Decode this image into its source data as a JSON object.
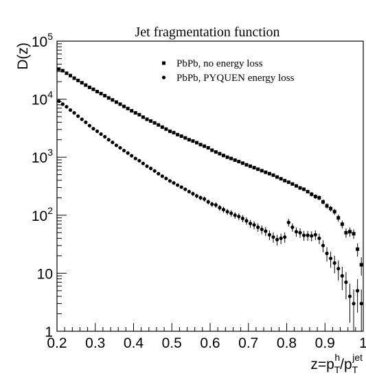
{
  "chart_data": {
    "type": "scatter",
    "title": "Jet fragmentation function",
    "ylabel": "D(z)",
    "xlabel_parts": {
      "base": "z=p",
      "sub1": "T",
      "sup1": "h",
      "slash": "/p",
      "sub2": "T",
      "sup2": "jet"
    },
    "xlim": [
      0.2,
      1.0
    ],
    "ylim": [
      1,
      100000
    ],
    "yscale": "log",
    "grid": false,
    "legend_position": "top-right",
    "x_ticks": [
      {
        "value": 0.2,
        "label": "0.2"
      },
      {
        "value": 0.3,
        "label": "0.3"
      },
      {
        "value": 0.4,
        "label": "0.4"
      },
      {
        "value": 0.5,
        "label": "0.5"
      },
      {
        "value": 0.6,
        "label": "0.6"
      },
      {
        "value": 0.7,
        "label": "0.7"
      },
      {
        "value": 0.8,
        "label": "0.8"
      },
      {
        "value": 0.9,
        "label": "0.9"
      },
      {
        "value": 1.0,
        "label": "1"
      }
    ],
    "y_ticks": [
      {
        "value": 1,
        "label": "1"
      },
      {
        "value": 10,
        "label": "10"
      },
      {
        "value": 100,
        "label": "10",
        "exp": "2"
      },
      {
        "value": 1000,
        "label": "10",
        "exp": "3"
      },
      {
        "value": 10000,
        "label": "10",
        "exp": "4"
      },
      {
        "value": 100000,
        "label": "10",
        "exp": "5"
      }
    ],
    "series": [
      {
        "name": "PbPb, no energy loss",
        "marker": "square",
        "color": "#000000",
        "points": [
          [
            0.205,
            33000
          ],
          [
            0.215,
            31000
          ],
          [
            0.225,
            28000
          ],
          [
            0.235,
            25500
          ],
          [
            0.245,
            23000
          ],
          [
            0.255,
            21000
          ],
          [
            0.265,
            19200
          ],
          [
            0.275,
            17500
          ],
          [
            0.285,
            16000
          ],
          [
            0.295,
            14800
          ],
          [
            0.305,
            13500
          ],
          [
            0.315,
            12500
          ],
          [
            0.325,
            11500
          ],
          [
            0.335,
            10500
          ],
          [
            0.345,
            9700
          ],
          [
            0.355,
            8900
          ],
          [
            0.365,
            8200
          ],
          [
            0.375,
            7500
          ],
          [
            0.385,
            6900
          ],
          [
            0.395,
            6300
          ],
          [
            0.405,
            5800
          ],
          [
            0.415,
            5400
          ],
          [
            0.425,
            4900
          ],
          [
            0.435,
            4500
          ],
          [
            0.445,
            4200
          ],
          [
            0.455,
            3900
          ],
          [
            0.465,
            3600
          ],
          [
            0.475,
            3300
          ],
          [
            0.485,
            3050
          ],
          [
            0.495,
            2800
          ],
          [
            0.505,
            2650
          ],
          [
            0.515,
            2450
          ],
          [
            0.525,
            2300
          ],
          [
            0.535,
            2150
          ],
          [
            0.545,
            2000
          ],
          [
            0.555,
            1900
          ],
          [
            0.565,
            1780
          ],
          [
            0.575,
            1650
          ],
          [
            0.585,
            1550
          ],
          [
            0.595,
            1450
          ],
          [
            0.605,
            1320
          ],
          [
            0.615,
            1230
          ],
          [
            0.625,
            1150
          ],
          [
            0.635,
            1070
          ],
          [
            0.645,
            1000
          ],
          [
            0.655,
            950
          ],
          [
            0.665,
            890
          ],
          [
            0.675,
            840
          ],
          [
            0.685,
            790
          ],
          [
            0.695,
            740
          ],
          [
            0.705,
            700
          ],
          [
            0.715,
            660
          ],
          [
            0.725,
            620
          ],
          [
            0.735,
            585
          ],
          [
            0.745,
            550
          ],
          [
            0.755,
            520
          ],
          [
            0.765,
            490
          ],
          [
            0.775,
            455
          ],
          [
            0.785,
            425
          ],
          [
            0.795,
            395
          ],
          [
            0.805,
            370
          ],
          [
            0.815,
            345
          ],
          [
            0.825,
            320
          ],
          [
            0.835,
            295
          ],
          [
            0.845,
            280
          ],
          [
            0.855,
            255
          ],
          [
            0.865,
            230
          ],
          [
            0.875,
            210
          ],
          [
            0.885,
            200
          ],
          [
            0.895,
            170
          ],
          [
            0.905,
            145
          ],
          [
            0.915,
            130
          ],
          [
            0.925,
            115
          ],
          [
            0.935,
            90
          ],
          [
            0.945,
            70
          ],
          [
            0.955,
            50
          ],
          [
            0.965,
            52
          ],
          [
            0.975,
            48
          ],
          [
            0.985,
            26
          ],
          [
            0.995,
            14
          ]
        ]
      },
      {
        "name": "PbPb, PYQUEN energy loss",
        "marker": "circle",
        "color": "#000000",
        "points": [
          [
            0.205,
            9200
          ],
          [
            0.215,
            8200
          ],
          [
            0.225,
            7400
          ],
          [
            0.235,
            6500
          ],
          [
            0.245,
            5800
          ],
          [
            0.255,
            5100
          ],
          [
            0.265,
            4500
          ],
          [
            0.275,
            4000
          ],
          [
            0.285,
            3500
          ],
          [
            0.295,
            3100
          ],
          [
            0.305,
            2800
          ],
          [
            0.315,
            2500
          ],
          [
            0.325,
            2250
          ],
          [
            0.335,
            2000
          ],
          [
            0.345,
            1800
          ],
          [
            0.355,
            1600
          ],
          [
            0.365,
            1450
          ],
          [
            0.375,
            1300
          ],
          [
            0.385,
            1180
          ],
          [
            0.395,
            1060
          ],
          [
            0.405,
            950
          ],
          [
            0.415,
            870
          ],
          [
            0.425,
            780
          ],
          [
            0.435,
            700
          ],
          [
            0.445,
            640
          ],
          [
            0.455,
            580
          ],
          [
            0.465,
            520
          ],
          [
            0.475,
            470
          ],
          [
            0.485,
            430
          ],
          [
            0.495,
            390
          ],
          [
            0.505,
            360
          ],
          [
            0.515,
            330
          ],
          [
            0.525,
            305
          ],
          [
            0.535,
            280
          ],
          [
            0.545,
            255
          ],
          [
            0.555,
            235
          ],
          [
            0.565,
            215
          ],
          [
            0.575,
            200
          ],
          [
            0.585,
            190
          ],
          [
            0.595,
            170
          ],
          [
            0.605,
            155
          ],
          [
            0.615,
            150
          ],
          [
            0.625,
            135
          ],
          [
            0.635,
            125
          ],
          [
            0.645,
            115
          ],
          [
            0.655,
            108
          ],
          [
            0.665,
            100
          ],
          [
            0.675,
            95
          ],
          [
            0.685,
            88
          ],
          [
            0.695,
            80
          ],
          [
            0.705,
            72
          ],
          [
            0.715,
            68
          ],
          [
            0.725,
            62
          ],
          [
            0.735,
            57
          ],
          [
            0.745,
            53
          ],
          [
            0.755,
            46
          ],
          [
            0.765,
            42
          ],
          [
            0.775,
            38
          ],
          [
            0.785,
            40
          ],
          [
            0.795,
            42
          ],
          [
            0.805,
            75
          ],
          [
            0.815,
            62
          ],
          [
            0.825,
            52
          ],
          [
            0.835,
            50
          ],
          [
            0.845,
            45
          ],
          [
            0.855,
            45
          ],
          [
            0.865,
            44
          ],
          [
            0.875,
            46
          ],
          [
            0.885,
            40
          ],
          [
            0.895,
            30
          ],
          [
            0.905,
            22
          ],
          [
            0.915,
            18
          ],
          [
            0.925,
            15
          ],
          [
            0.935,
            12
          ],
          [
            0.945,
            9
          ],
          [
            0.955,
            7
          ],
          [
            0.965,
            4
          ],
          [
            0.975,
            3
          ],
          [
            0.985,
            5
          ],
          [
            0.995,
            3
          ]
        ]
      }
    ]
  }
}
